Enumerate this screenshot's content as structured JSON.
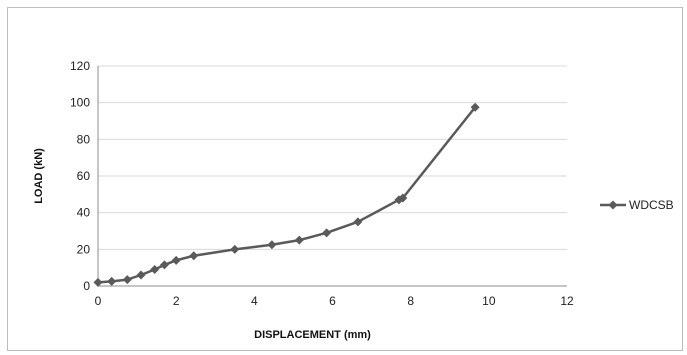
{
  "chart_data": {
    "type": "line",
    "title": "",
    "xlabel": "DISPLACEMENT (mm)",
    "ylabel": "LOAD (kN)",
    "xlim": [
      0,
      12
    ],
    "ylim": [
      0,
      120
    ],
    "x_ticks": [
      0,
      2,
      4,
      6,
      8,
      10,
      12
    ],
    "y_ticks": [
      0,
      20,
      40,
      60,
      80,
      100,
      120
    ],
    "grid": "horizontal",
    "legend_position": "right",
    "series": [
      {
        "name": "WDCSB",
        "color": "#5a5a5a",
        "marker": "diamond",
        "x": [
          0.0,
          0.35,
          0.75,
          1.1,
          1.45,
          1.7,
          2.0,
          2.45,
          3.5,
          4.45,
          5.15,
          5.85,
          6.65,
          7.7,
          7.8,
          9.65
        ],
        "y": [
          2,
          2.5,
          3.5,
          6,
          9,
          11.5,
          14,
          16.5,
          20,
          22.5,
          25,
          29,
          35,
          47,
          48,
          97.5
        ]
      }
    ]
  }
}
